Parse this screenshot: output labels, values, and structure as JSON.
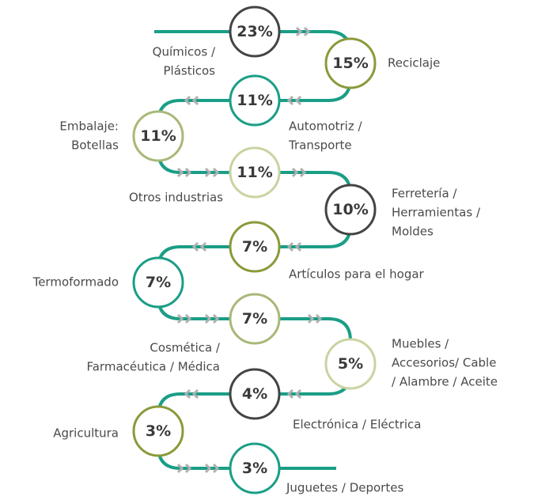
{
  "nodes": [
    {
      "value": "23%",
      "label": [
        "Químicos /",
        "Plásticos"
      ]
    },
    {
      "value": "15%",
      "label": [
        "Reciclaje"
      ]
    },
    {
      "value": "11%",
      "label": [
        "Automotriz /",
        "Transporte"
      ]
    },
    {
      "value": "11%",
      "label": [
        "Embalaje:",
        "Botellas"
      ]
    },
    {
      "value": "11%",
      "label": [
        "Otros industrias"
      ]
    },
    {
      "value": "10%",
      "label": [
        "Ferretería /",
        "Herramientas /",
        "Moldes"
      ]
    },
    {
      "value": "7%",
      "label": [
        "Artículos para el hogar"
      ]
    },
    {
      "value": "7%",
      "label": [
        "Termoformado"
      ]
    },
    {
      "value": "7%",
      "label": [
        "Cosmética /",
        "Farmacéutica / Médica"
      ]
    },
    {
      "value": "5%",
      "label": [
        "Muebles /",
        "Accesorios/ Cable",
        "/ Alambre / Aceite"
      ]
    },
    {
      "value": "4%",
      "label": [
        "Electrónica /  Eléctrica"
      ]
    },
    {
      "value": "3%",
      "label": [
        "Agricultura"
      ]
    },
    {
      "value": "3%",
      "label": [
        "Juguetes / Deportes"
      ]
    }
  ]
}
